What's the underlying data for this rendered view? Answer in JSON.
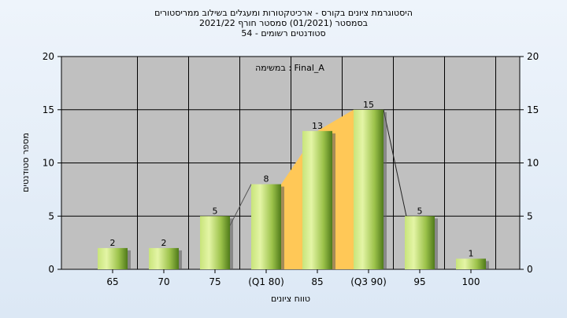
{
  "chart_data": {
    "type": "bar",
    "title": [
      "היסטוגרמת ציונים בקורס - ארכיטקטורות ומעגלים בשילוב ממריסטורים",
      "בסמסטר  (01/2021)  סמסטר חורף 2021/22",
      "סטודנטים רשומים - 54"
    ],
    "annotation": "במשימה : Final_A",
    "xlabel": "טווח ציונים",
    "ylabel": "מספר סטודנטים",
    "ylim": [
      0,
      20
    ],
    "yticks": [
      0,
      5,
      10,
      15,
      20
    ],
    "categories": [
      "65",
      "70",
      "75",
      "(Q1 80)",
      "85",
      "(Q3 90)",
      "95",
      "100"
    ],
    "values": [
      2,
      2,
      5,
      8,
      13,
      15,
      5,
      1
    ],
    "data_labels": [
      "2",
      "2",
      "5",
      "8",
      "13",
      "15",
      "5",
      "1"
    ],
    "interquartile_band": [
      "(Q1 80)",
      "(Q3 90)"
    ],
    "grid": true,
    "colors": {
      "plot_bg": "#c0c0c0",
      "bar_light": "#d6ef8c",
      "bar_dark": "#4f7a1a",
      "band": "#ffc857",
      "grid": "#000000"
    }
  }
}
